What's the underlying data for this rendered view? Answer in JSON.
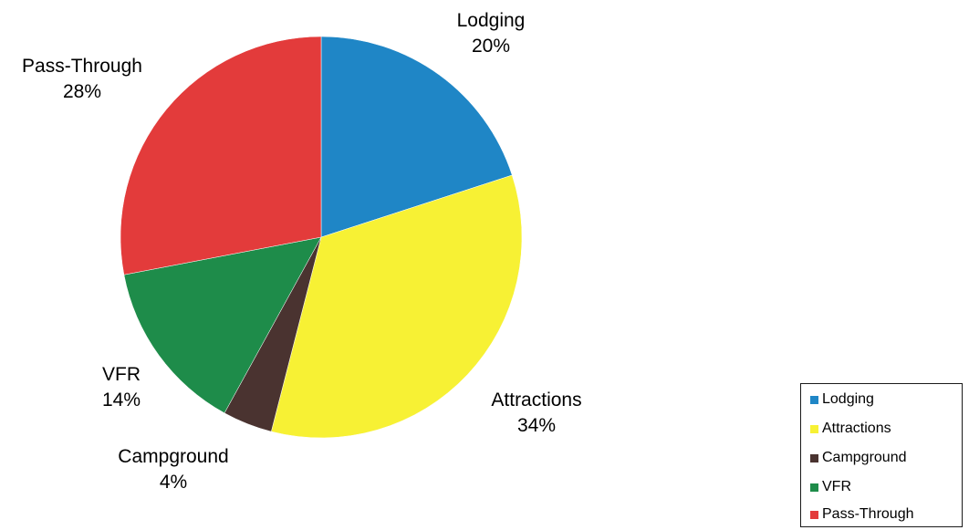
{
  "chart_data": {
    "type": "pie",
    "title": "",
    "slices": [
      {
        "label": "Lodging",
        "value": 20,
        "value_label": "20%",
        "color": "#1f86c6"
      },
      {
        "label": "Attractions",
        "value": 34,
        "value_label": "34%",
        "color": "#f7f134"
      },
      {
        "label": "Campground",
        "value": 4,
        "value_label": "4%",
        "color": "#4a3330"
      },
      {
        "label": "VFR",
        "value": 14,
        "value_label": "14%",
        "color": "#1e8c4a"
      },
      {
        "label": "Pass-Through",
        "value": 28,
        "value_label": "28%",
        "color": "#e33b3b"
      }
    ],
    "start_angle_deg": 0,
    "direction": "clockwise",
    "legend": {
      "position": "bottom-right",
      "entries": [
        "Lodging",
        "Attractions",
        "Campground",
        "VFR",
        "Pass-Through"
      ]
    }
  }
}
